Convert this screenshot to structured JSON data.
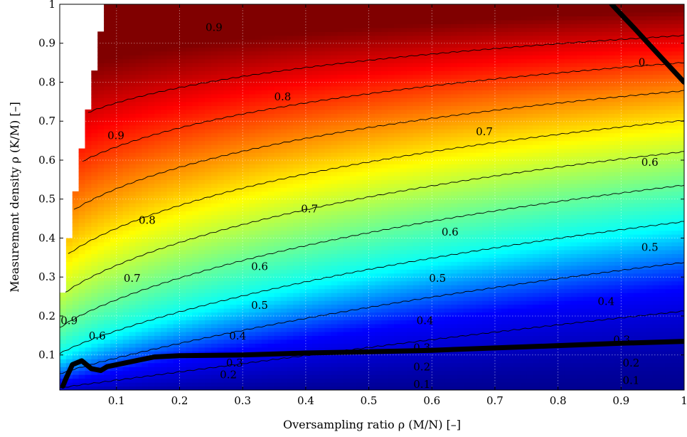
{
  "chart_data": {
    "type": "heatmap",
    "xlabel": "Oversampling ratio ρ (M/N) [–]",
    "ylabel": "Measurement density ρ (K/M) [–]",
    "xlim": [
      0.01,
      1.0
    ],
    "ylim": [
      0.01,
      1.0
    ],
    "x_ticks": [
      "0.1",
      "0.2",
      "0.3",
      "0.4",
      "0.5",
      "0.6",
      "0.7",
      "0.8",
      "0.9",
      "1"
    ],
    "y_ticks": [
      "0.1",
      "0.2",
      "0.3",
      "0.4",
      "0.5",
      "0.6",
      "0.7",
      "0.8",
      "0.9",
      "1"
    ],
    "grid": true,
    "colormap": "jet",
    "colormap_stops": [
      "#00008f",
      "#0000ff",
      "#00ffff",
      "#80ff80",
      "#ffff00",
      "#ff8000",
      "#ff0000",
      "#800000"
    ],
    "colormap_range": [
      0.0,
      1.0
    ],
    "contour_levels": [
      0.1,
      0.2,
      0.3,
      0.4,
      0.5,
      0.6,
      0.7,
      0.8,
      0.9
    ],
    "contour_labels": [
      {
        "text": "0.9",
        "x": 0.247,
        "y": 0.94
      },
      {
        "text": "0.9",
        "x": 0.09,
        "y": 0.66
      },
      {
        "text": "0.9",
        "x": 0.015,
        "y": 0.18
      },
      {
        "text": "0.8",
        "x": 0.357,
        "y": 0.76
      },
      {
        "text": "0.8",
        "x": 0.14,
        "y": 0.44
      },
      {
        "text": "0.7",
        "x": 0.68,
        "y": 0.67
      },
      {
        "text": "0.7",
        "x": 0.4,
        "y": 0.47
      },
      {
        "text": "0.7",
        "x": 0.116,
        "y": 0.29
      },
      {
        "text": "0.6",
        "x": 0.945,
        "y": 0.59
      },
      {
        "text": "0.6",
        "x": 0.625,
        "y": 0.41
      },
      {
        "text": "0.6",
        "x": 0.32,
        "y": 0.32
      },
      {
        "text": "0.6",
        "x": 0.06,
        "y": 0.14
      },
      {
        "text": "0.5",
        "x": 0.945,
        "y": 0.37
      },
      {
        "text": "0.5",
        "x": 0.605,
        "y": 0.29
      },
      {
        "text": "0.5",
        "x": 0.32,
        "y": 0.22
      },
      {
        "text": "0.4",
        "x": 0.875,
        "y": 0.23
      },
      {
        "text": "0.4",
        "x": 0.585,
        "y": 0.18
      },
      {
        "text": "0.4",
        "x": 0.285,
        "y": 0.14
      },
      {
        "text": "0.3",
        "x": 0.58,
        "y": 0.11
      },
      {
        "text": "0.3",
        "x": 0.9,
        "y": 0.13
      },
      {
        "text": "0.3",
        "x": 0.28,
        "y": 0.07
      },
      {
        "text": "0.2",
        "x": 0.58,
        "y": 0.06
      },
      {
        "text": "0.2",
        "x": 0.915,
        "y": 0.07
      },
      {
        "text": "0.2",
        "x": 0.27,
        "y": 0.04
      },
      {
        "text": "0.1",
        "x": 0.58,
        "y": 0.015
      },
      {
        "text": "0.1",
        "x": 0.915,
        "y": 0.025
      },
      {
        "text": "0.",
        "x": 0.935,
        "y": 0.85
      }
    ],
    "thick_curves": [
      {
        "name": "boundary",
        "points": [
          [
            0.015,
            0.02
          ],
          [
            0.02,
            0.04
          ],
          [
            0.03,
            0.075
          ],
          [
            0.045,
            0.085
          ],
          [
            0.06,
            0.065
          ],
          [
            0.075,
            0.06
          ],
          [
            0.085,
            0.07
          ],
          [
            0.1,
            0.075
          ],
          [
            0.13,
            0.085
          ],
          [
            0.16,
            0.095
          ],
          [
            0.2,
            0.098
          ],
          [
            0.3,
            0.1
          ],
          [
            0.4,
            0.105
          ],
          [
            0.5,
            0.108
          ],
          [
            0.6,
            0.112
          ],
          [
            0.7,
            0.118
          ],
          [
            0.8,
            0.124
          ],
          [
            0.9,
            0.13
          ],
          [
            1.0,
            0.135
          ]
        ]
      },
      {
        "name": "upper-right",
        "points": [
          [
            0.885,
            1.0
          ],
          [
            0.92,
            0.94
          ],
          [
            0.96,
            0.87
          ],
          [
            1.0,
            0.8
          ]
        ]
      }
    ]
  }
}
